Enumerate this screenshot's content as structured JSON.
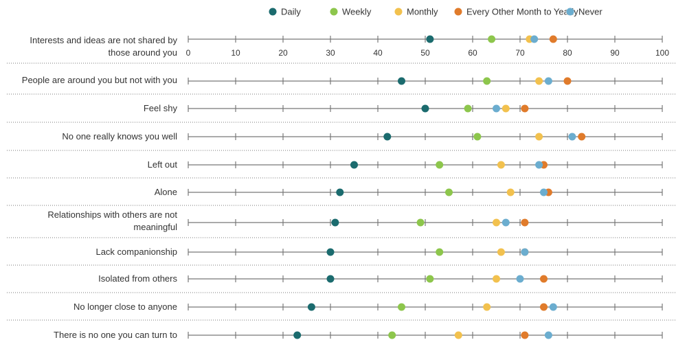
{
  "chart_data": {
    "type": "dot",
    "categories": [
      "Interests and ideas are not shared by those around you",
      "People are around you but not with you",
      "Feel shy",
      "No one really knows you well",
      "Left out",
      "Alone",
      "Relationships with others are not meaningful",
      "Lack companionship",
      "Isolated from others",
      "No longer close to anyone",
      "There is no one you can turn to"
    ],
    "series": [
      {
        "name": "Daily",
        "color": "#1b6b6e",
        "values": [
          51,
          45,
          50,
          42,
          35,
          32,
          31,
          30,
          30,
          26,
          23
        ]
      },
      {
        "name": "Weekly",
        "color": "#8dc64c",
        "values": [
          64,
          63,
          59,
          61,
          53,
          55,
          49,
          53,
          51,
          45,
          43
        ]
      },
      {
        "name": "Monthly",
        "color": "#f2c14e",
        "values": [
          72,
          74,
          67,
          74,
          66,
          68,
          65,
          66,
          65,
          63,
          57
        ]
      },
      {
        "name": "Every Other Month to Yearly",
        "color": "#e07b2b",
        "values": [
          77,
          80,
          71,
          83,
          75,
          76,
          71,
          71,
          75,
          75,
          71
        ]
      },
      {
        "name": "Never",
        "color": "#6badcf",
        "values": [
          73,
          76,
          65,
          81,
          74,
          75,
          67,
          71,
          70,
          77,
          76
        ]
      }
    ],
    "xlim": [
      0,
      100
    ],
    "xticks": [
      0,
      10,
      20,
      30,
      40,
      50,
      60,
      70,
      80,
      90,
      100
    ]
  }
}
